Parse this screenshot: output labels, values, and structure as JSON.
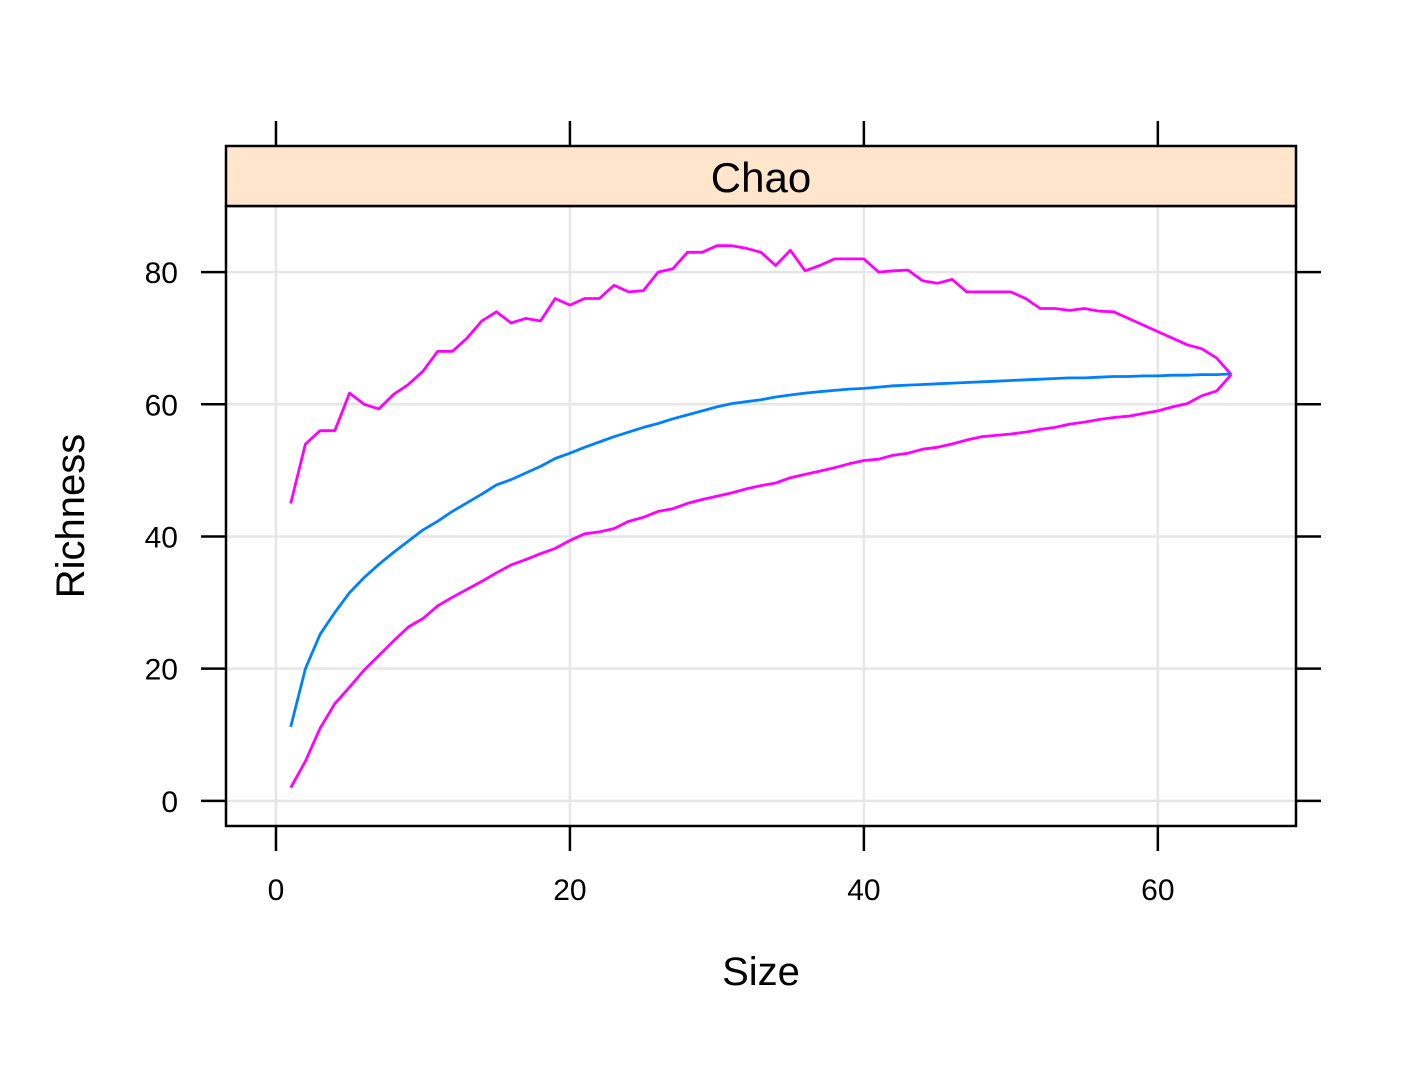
{
  "colors": {
    "mean_line": "#0080ff",
    "ci_lines": "#ff00ff",
    "strip_fill": "#ffe5cc",
    "grid": "#e6e6e6",
    "frame": "#000000"
  },
  "chart_data": {
    "type": "line",
    "strip_label": "Chao",
    "xlabel": "Size",
    "ylabel": "Richness",
    "xlim": [
      -3.4,
      69.4
    ],
    "ylim": [
      -3.8,
      90
    ],
    "x_ticks": [
      0,
      20,
      40,
      60
    ],
    "y_ticks": [
      0,
      20,
      40,
      60,
      80
    ],
    "x_tick_labels": [
      "0",
      "20",
      "40",
      "60"
    ],
    "y_tick_labels": [
      "0",
      "20",
      "40",
      "60",
      "80"
    ],
    "grid": true,
    "legend": "none",
    "x": [
      1,
      2,
      3,
      4,
      5,
      6,
      7,
      8,
      9,
      10,
      11,
      12,
      13,
      14,
      15,
      16,
      17,
      18,
      19,
      20,
      21,
      22,
      23,
      24,
      25,
      26,
      27,
      28,
      29,
      30,
      31,
      32,
      33,
      34,
      35,
      36,
      37,
      38,
      39,
      40,
      41,
      42,
      43,
      44,
      45,
      46,
      47,
      48,
      49,
      50,
      51,
      52,
      53,
      54,
      55,
      56,
      57,
      58,
      59,
      60,
      61,
      62,
      63,
      64,
      65
    ],
    "series": [
      {
        "role": "upper",
        "values": [
          45,
          54,
          56,
          56,
          61.7,
          60,
          59.3,
          61.5,
          63,
          65,
          68,
          68,
          70,
          72.6,
          74,
          72.3,
          73,
          72.6,
          76,
          75,
          76,
          76,
          78,
          77,
          77.2,
          80,
          80.5,
          83,
          83,
          84,
          84,
          83.6,
          83,
          81,
          83.3,
          80.2,
          81,
          82,
          82,
          82,
          80,
          80.2,
          80.3,
          78.7,
          78.3,
          78.9,
          77,
          77,
          77,
          77,
          76,
          74.5,
          74.5,
          74.2,
          74.5,
          74.1,
          74,
          73,
          72,
          71,
          70,
          69,
          68.4,
          67,
          64.5
        ]
      },
      {
        "role": "mean",
        "values": [
          11.2,
          20,
          25.2,
          28.5,
          31.5,
          33.8,
          35.8,
          37.6,
          39.3,
          41,
          42.3,
          43.8,
          45.1,
          46.4,
          47.8,
          48.6,
          49.6,
          50.6,
          51.8,
          52.6,
          53.5,
          54.3,
          55.1,
          55.8,
          56.5,
          57.1,
          57.8,
          58.4,
          59,
          59.6,
          60.1,
          60.4,
          60.7,
          61.1,
          61.4,
          61.7,
          61.9,
          62.1,
          62.3,
          62.4,
          62.6,
          62.8,
          62.9,
          63,
          63.1,
          63.2,
          63.3,
          63.4,
          63.5,
          63.6,
          63.7,
          63.8,
          63.9,
          64,
          64,
          64.1,
          64.2,
          64.2,
          64.3,
          64.3,
          64.4,
          64.4,
          64.5,
          64.5,
          64.6
        ]
      },
      {
        "role": "lower",
        "values": [
          2,
          6,
          11,
          14.7,
          17.2,
          19.8,
          22,
          24.2,
          26.3,
          27.6,
          29.5,
          30.8,
          32,
          33.2,
          34.5,
          35.7,
          36.5,
          37.4,
          38.2,
          39.4,
          40.4,
          40.7,
          41.2,
          42.3,
          42.9,
          43.8,
          44.2,
          45,
          45.6,
          46.1,
          46.6,
          47.2,
          47.7,
          48.1,
          48.9,
          49.4,
          49.9,
          50.4,
          51,
          51.5,
          51.7,
          52.3,
          52.6,
          53.2,
          53.5,
          54,
          54.6,
          55.1,
          55.3,
          55.5,
          55.8,
          56.2,
          56.5,
          57,
          57.3,
          57.7,
          58,
          58.2,
          58.6,
          59,
          59.6,
          60.1,
          61.3,
          62,
          64.5
        ]
      }
    ]
  }
}
